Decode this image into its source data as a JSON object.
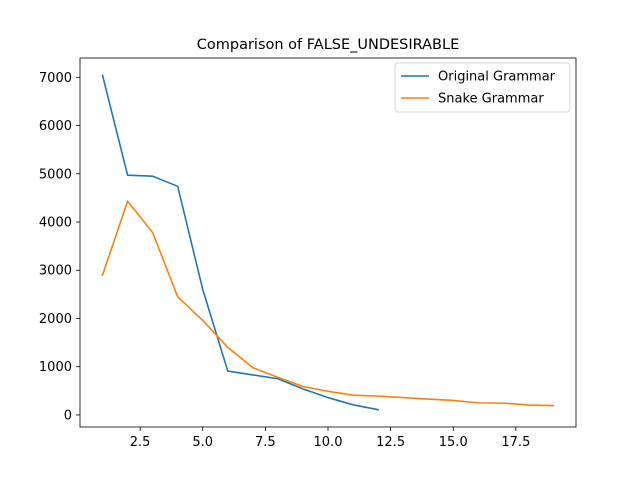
{
  "chart_data": {
    "type": "line",
    "title": "Comparison of FALSE_UNDESIRABLE",
    "xlabel": "",
    "ylabel": "",
    "xlim": [
      0.1,
      19.9
    ],
    "ylim": [
      -250,
      7400
    ],
    "xticks": [
      2.5,
      5.0,
      7.5,
      10.0,
      12.5,
      15.0,
      17.5
    ],
    "xtick_labels": [
      "2.5",
      "5.0",
      "7.5",
      "10.0",
      "12.5",
      "15.0",
      "17.5"
    ],
    "yticks": [
      0,
      1000,
      2000,
      3000,
      4000,
      5000,
      6000,
      7000
    ],
    "ytick_labels": [
      "0",
      "1000",
      "2000",
      "3000",
      "4000",
      "5000",
      "6000",
      "7000"
    ],
    "grid": false,
    "legend_position": "top-right",
    "series": [
      {
        "name": "Original Grammar",
        "color": "#1f77b4",
        "x": [
          1,
          2,
          3,
          4,
          5,
          6,
          7,
          8,
          9,
          10,
          11,
          12
        ],
        "values": [
          7040,
          4970,
          4950,
          4740,
          2600,
          910,
          830,
          750,
          540,
          360,
          210,
          110
        ]
      },
      {
        "name": "Snake Grammar",
        "color": "#ff7f0e",
        "x": [
          1,
          2,
          3,
          4,
          5,
          6,
          7,
          8,
          9,
          10,
          11,
          12,
          13,
          14,
          15,
          16,
          17,
          18,
          19
        ],
        "values": [
          2900,
          4430,
          3780,
          2450,
          1960,
          1400,
          980,
          780,
          590,
          490,
          410,
          390,
          360,
          330,
          300,
          250,
          245,
          205,
          195
        ]
      }
    ]
  }
}
